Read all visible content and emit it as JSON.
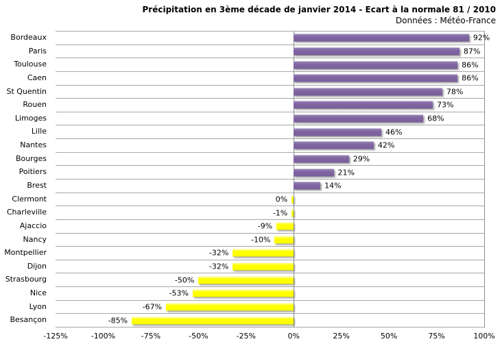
{
  "header": {
    "title": "Précipitation en 3ème décade de janvier 2014 - Ecart à la normale 81 / 2010",
    "subtitle": "Données : Météo-France"
  },
  "chart_data": {
    "type": "bar",
    "orientation": "horizontal",
    "title": "Précipitation en 3ème décade de janvier 2014 - Ecart à la normale 81 / 2010",
    "subtitle": "Données : Météo-France",
    "categories": [
      "Bordeaux",
      "Paris",
      "Toulouse",
      "Caen",
      "St Quentin",
      "Rouen",
      "Limoges",
      "Lille",
      "Nantes",
      "Bourges",
      "Poitiers",
      "Brest",
      "Clermont",
      "Charleville",
      "Ajaccio",
      "Nancy",
      "Montpellier",
      "Dijon",
      "Strasbourg",
      "Nice",
      "Lyon",
      "Besançon"
    ],
    "values": [
      92,
      87,
      86,
      86,
      78,
      73,
      68,
      46,
      42,
      29,
      21,
      14,
      0,
      -1,
      -9,
      -10,
      -32,
      -32,
      -50,
      -53,
      -67,
      -85
    ],
    "data_labels": [
      "92%",
      "87%",
      "86%",
      "86%",
      "78%",
      "73%",
      "68%",
      "46%",
      "42%",
      "29%",
      "21%",
      "14%",
      "0%",
      "-1%",
      "-9%",
      "-10%",
      "-32%",
      "-32%",
      "-50%",
      "-53%",
      "-67%",
      "-85%"
    ],
    "xlabel": "",
    "ylabel": "",
    "xlim": [
      -125,
      100
    ],
    "x_ticks": [
      -125,
      -100,
      -75,
      -50,
      -25,
      0,
      25,
      50,
      75,
      100
    ],
    "x_tick_labels": [
      "-125%",
      "-100%",
      "-75%",
      "-50%",
      "-25%",
      "0%",
      "25%",
      "50%",
      "75%",
      "100%"
    ],
    "legend": "none",
    "grid": "category-separators-horizontal",
    "colors": {
      "positive_bar": "#8064A2",
      "negative_bar": "#FFFF00",
      "gridline": "#A6A6A6",
      "axis_line": "#8C8C8C",
      "text": "#000000",
      "background": "#FFFFFF"
    }
  }
}
